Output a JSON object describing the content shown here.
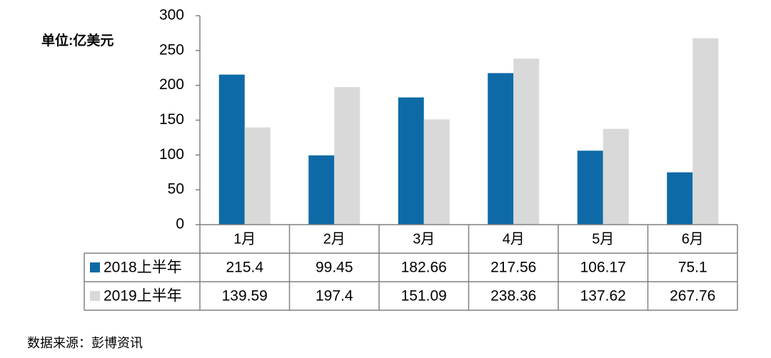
{
  "chart_data": {
    "type": "bar",
    "y_axis_label": "单位:亿美元",
    "source": "数据来源：彭博资讯",
    "categories": [
      "1月",
      "2月",
      "3月",
      "4月",
      "5月",
      "6月"
    ],
    "series": [
      {
        "name": "2018上半年",
        "color": "#0e6aa6",
        "values": [
          215.4,
          99.45,
          182.66,
          217.56,
          106.17,
          75.1
        ]
      },
      {
        "name": "2019上半年",
        "color": "#d9d9d9",
        "values": [
          139.59,
          197.4,
          151.09,
          238.36,
          137.62,
          267.76
        ]
      }
    ],
    "ylim": [
      0,
      300
    ],
    "yticks": [
      0,
      50,
      100,
      150,
      200,
      250,
      300
    ]
  }
}
